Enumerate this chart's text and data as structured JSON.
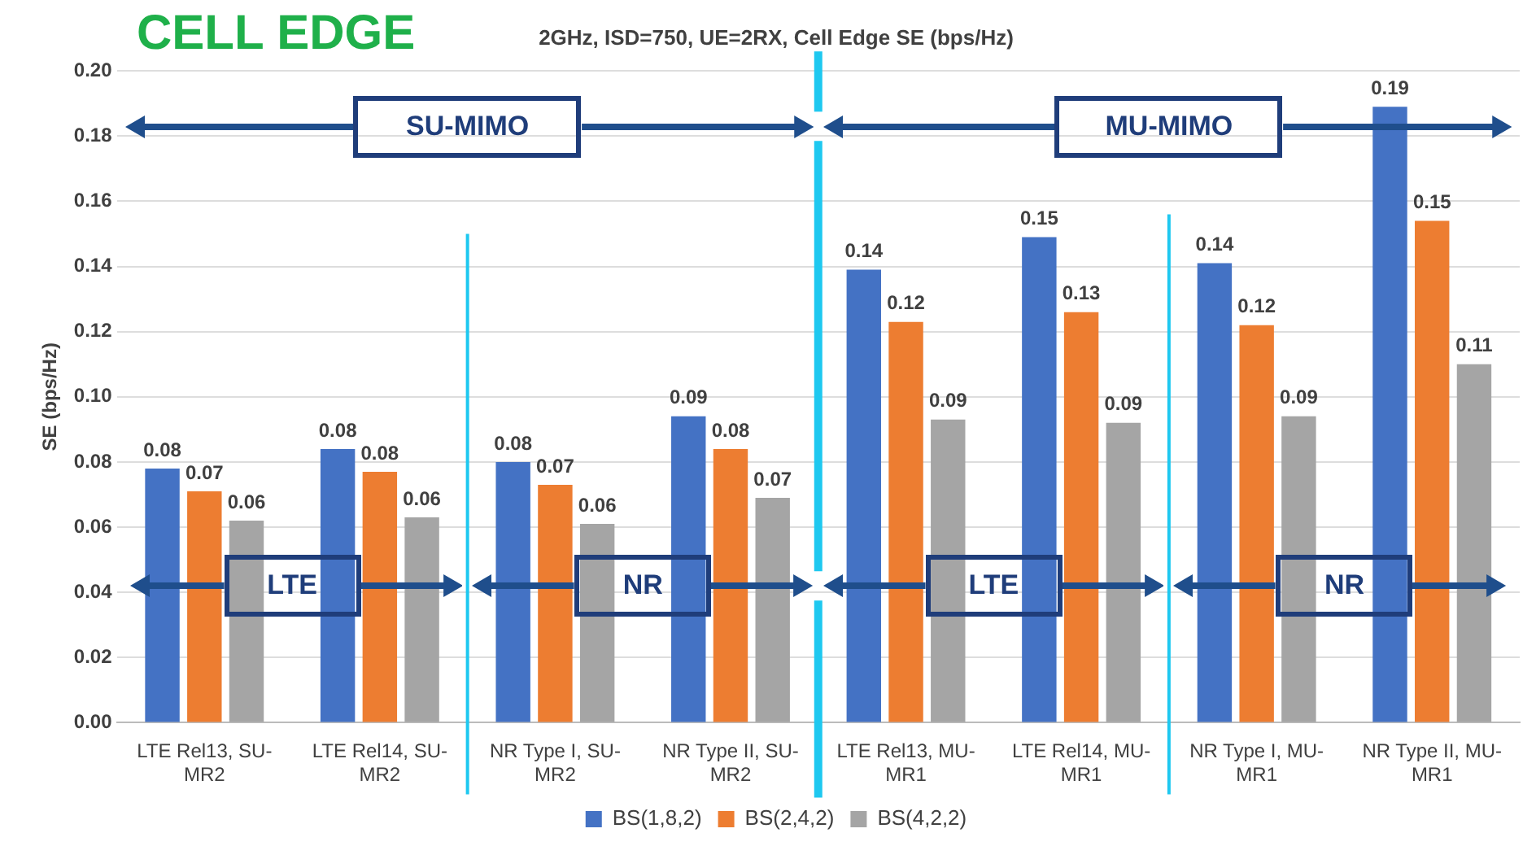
{
  "chart_data": {
    "type": "bar",
    "title": "2GHz, ISD=750, UE=2RX, Cell Edge SE (bps/Hz)",
    "ylabel": "SE (bps/Hz)",
    "categories": [
      "LTE Rel13, SU-MR2",
      "LTE Rel14, SU-MR2",
      "NR Type I, SU-MR2",
      "NR Type II, SU-MR2",
      "LTE Rel13, MU-MR1",
      "LTE Rel14, MU-MR1",
      "NR Type I, MU-MR1",
      "NR Type II, MU-MR1"
    ],
    "series": [
      {
        "name": "BS(1,8,2)",
        "color": "#4472c4",
        "values": [
          0.078,
          0.084,
          0.08,
          0.094,
          0.139,
          0.149,
          0.141,
          0.189
        ],
        "value_labels": [
          "0.08",
          "0.08",
          "0.08",
          "0.09",
          "0.14",
          "0.15",
          "0.14",
          "0.19"
        ]
      },
      {
        "name": "BS(2,4,2)",
        "color": "#ed7d31",
        "values": [
          0.071,
          0.077,
          0.073,
          0.084,
          0.123,
          0.126,
          0.122,
          0.154
        ],
        "value_labels": [
          "0.07",
          "0.08",
          "0.07",
          "0.08",
          "0.12",
          "0.13",
          "0.12",
          "0.15"
        ]
      },
      {
        "name": "BS(4,2,2)",
        "color": "#a5a5a5",
        "values": [
          0.062,
          0.063,
          0.061,
          0.069,
          0.093,
          0.092,
          0.094,
          0.11
        ],
        "value_labels": [
          "0.06",
          "0.06",
          "0.06",
          "0.07",
          "0.09",
          "0.09",
          "0.09",
          "0.11"
        ]
      }
    ],
    "ylim": [
      0,
      0.2
    ],
    "yticks": [
      {
        "value": 0,
        "label": "0.00"
      },
      {
        "value": 0.02,
        "label": "0.02"
      },
      {
        "value": 0.04,
        "label": "0.04"
      },
      {
        "value": 0.06,
        "label": "0.06"
      },
      {
        "value": 0.08,
        "label": "0.08"
      },
      {
        "value": 0.1,
        "label": "0.10"
      },
      {
        "value": 0.12,
        "label": "0.12"
      },
      {
        "value": 0.14,
        "label": "0.14"
      },
      {
        "value": 0.16,
        "label": "0.16"
      },
      {
        "value": 0.18,
        "label": "0.18"
      },
      {
        "value": 0.2,
        "label": "0.20"
      }
    ],
    "grid": "y",
    "legend": "bottom",
    "annotations": [
      "CELL EDGE",
      "SU-MIMO",
      "MU-MIMO",
      "LTE",
      "NR",
      "LTE",
      "NR"
    ]
  }
}
